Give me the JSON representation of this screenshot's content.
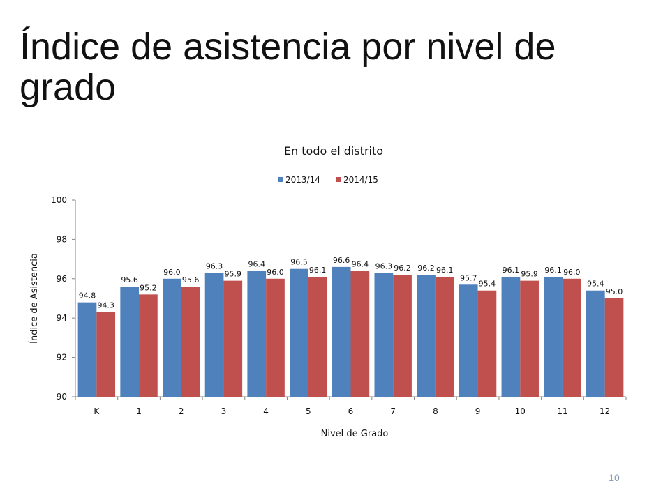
{
  "slide": {
    "title": "Índice de asistencia por nivel de grado",
    "page_number": "10"
  },
  "colors": {
    "series_2013_14": "#4f81bd",
    "series_2014_15": "#c0504d",
    "axis": "#868686",
    "text": "#111111"
  },
  "chart_data": {
    "type": "bar",
    "title": "En todo el distrito",
    "xlabel": "Nivel de Grado",
    "ylabel": "Índice de Asistencia",
    "categories": [
      "K",
      "1",
      "2",
      "3",
      "4",
      "5",
      "6",
      "7",
      "8",
      "9",
      "10",
      "11",
      "12"
    ],
    "series": [
      {
        "name": "2013/14",
        "color": "#4f81bd",
        "values": [
          94.8,
          95.6,
          96.0,
          96.3,
          96.4,
          96.5,
          96.6,
          96.3,
          96.2,
          95.7,
          96.1,
          96.1,
          95.4
        ]
      },
      {
        "name": "2014/15",
        "color": "#c0504d",
        "values": [
          94.3,
          95.2,
          95.6,
          95.9,
          96.0,
          96.1,
          96.4,
          96.2,
          96.1,
          95.4,
          95.9,
          96.0,
          95.0
        ]
      }
    ],
    "ylim": [
      90,
      100
    ],
    "yticks": [
      "90",
      "92",
      "94",
      "96",
      "98",
      "100"
    ],
    "legend_position": "top",
    "grid": false
  }
}
